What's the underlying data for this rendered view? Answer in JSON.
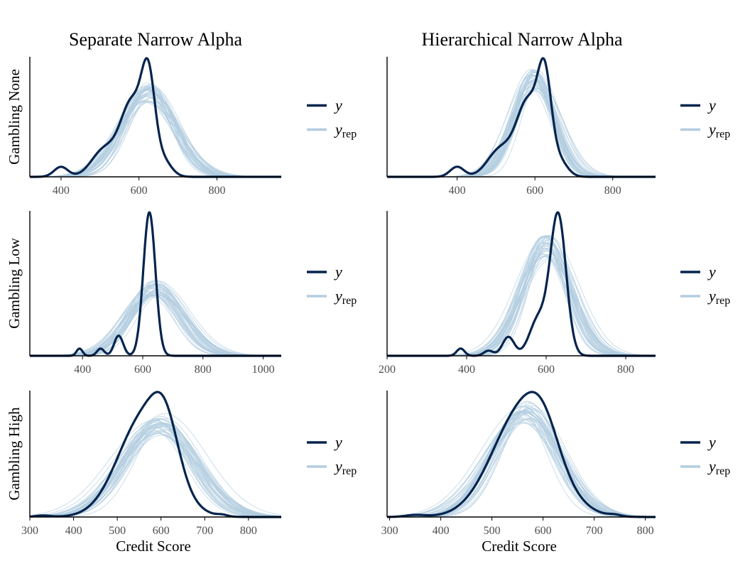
{
  "colors": {
    "observed": "#03244d",
    "replicated": "#b3cde0",
    "axis": "#000000",
    "tick_label": "#4d4d4d"
  },
  "legend": {
    "observed_label": "y",
    "replicated_base": "y",
    "replicated_subscript": "rep"
  },
  "chart_data": [
    {
      "type": "line",
      "title": "Separate Narrow Alpha",
      "ylabel": "Gambling None",
      "xlabel": "",
      "xlim": [
        320,
        965
      ],
      "xticks": [
        400,
        600,
        800
      ],
      "grid": false,
      "legend_position": "right",
      "observed": {
        "name": "y",
        "modes": [
          {
            "mu": 624,
            "sd": 17,
            "w": 0.5
          },
          {
            "mu": 583,
            "sd": 30,
            "w": 0.45
          },
          {
            "mu": 510,
            "sd": 32,
            "w": 0.16
          },
          {
            "mu": 400,
            "sd": 18,
            "w": 0.06
          },
          {
            "mu": 660,
            "sd": 22,
            "w": 0.1
          }
        ]
      },
      "replicated": {
        "name": "y rep",
        "count": 40,
        "mu": 625,
        "sd": 68,
        "peak": 0.71
      }
    },
    {
      "type": "line",
      "title": "Hierarchical Narrow Alpha",
      "ylabel": "",
      "xlabel": "",
      "xlim": [
        220,
        910
      ],
      "xticks": [
        400,
        600,
        800
      ],
      "grid": false,
      "legend_position": "right",
      "observed": {
        "name": "y",
        "modes": [
          {
            "mu": 625,
            "sd": 17,
            "w": 0.5
          },
          {
            "mu": 583,
            "sd": 30,
            "w": 0.45
          },
          {
            "mu": 510,
            "sd": 32,
            "w": 0.16
          },
          {
            "mu": 400,
            "sd": 18,
            "w": 0.06
          },
          {
            "mu": 660,
            "sd": 22,
            "w": 0.1
          }
        ]
      },
      "replicated": {
        "name": "y rep",
        "count": 40,
        "mu": 598,
        "sd": 52,
        "peak": 0.82
      }
    },
    {
      "type": "line",
      "title": "",
      "ylabel": "Gambling Low",
      "xlabel": "",
      "xlim": [
        225,
        1060
      ],
      "xticks": [
        400,
        600,
        800,
        1000
      ],
      "grid": false,
      "legend_position": "right",
      "observed": {
        "name": "y",
        "modes": [
          {
            "mu": 622,
            "sd": 20,
            "w": 1.0
          },
          {
            "mu": 520,
            "sd": 15,
            "w": 0.14
          },
          {
            "mu": 460,
            "sd": 12,
            "w": 0.05
          },
          {
            "mu": 390,
            "sd": 10,
            "w": 0.05
          }
        ]
      },
      "replicated": {
        "name": "y rep",
        "count": 40,
        "mu": 640,
        "sd": 88,
        "peak": 0.47
      }
    },
    {
      "type": "line",
      "title": "",
      "ylabel": "",
      "xlabel": "",
      "xlim": [
        200,
        875
      ],
      "xticks": [
        200,
        400,
        600,
        800
      ],
      "grid": false,
      "legend_position": "right",
      "observed": {
        "name": "y",
        "modes": [
          {
            "mu": 630,
            "sd": 20,
            "w": 0.97
          },
          {
            "mu": 580,
            "sd": 22,
            "w": 0.25
          },
          {
            "mu": 505,
            "sd": 15,
            "w": 0.13
          },
          {
            "mu": 455,
            "sd": 12,
            "w": 0.035
          },
          {
            "mu": 385,
            "sd": 10,
            "w": 0.05
          }
        ]
      },
      "replicated": {
        "name": "y rep",
        "count": 40,
        "mu": 600,
        "sd": 60,
        "peak": 0.75
      }
    },
    {
      "type": "line",
      "title": "",
      "ylabel": "Gambling High",
      "xlabel": "Credit Score",
      "xlim": [
        300,
        875
      ],
      "xticks": [
        300,
        400,
        500,
        600,
        700,
        800
      ],
      "grid": false,
      "legend_position": "right",
      "observed": {
        "name": "y",
        "modes": [
          {
            "mu": 562,
            "sd": 60,
            "w": 0.8
          },
          {
            "mu": 610,
            "sd": 30,
            "w": 0.35
          },
          {
            "mu": 740,
            "sd": 12,
            "w": 0.012
          },
          {
            "mu": 330,
            "sd": 18,
            "w": 0.012
          }
        ]
      },
      "replicated": {
        "name": "y rep",
        "count": 40,
        "mu": 595,
        "sd": 80,
        "peak": 0.74
      }
    },
    {
      "type": "line",
      "title": "",
      "ylabel": "",
      "xlabel": "Credit Score",
      "xlim": [
        295,
        820
      ],
      "xticks": [
        300,
        400,
        500,
        600,
        700,
        800
      ],
      "grid": false,
      "legend_position": "right",
      "observed": {
        "name": "y",
        "modes": [
          {
            "mu": 562,
            "sd": 60,
            "w": 0.85
          },
          {
            "mu": 600,
            "sd": 30,
            "w": 0.2
          },
          {
            "mu": 740,
            "sd": 12,
            "w": 0.012
          },
          {
            "mu": 350,
            "sd": 20,
            "w": 0.015
          }
        ]
      },
      "replicated": {
        "name": "y rep",
        "count": 40,
        "mu": 566,
        "sd": 66,
        "peak": 0.84
      }
    }
  ]
}
